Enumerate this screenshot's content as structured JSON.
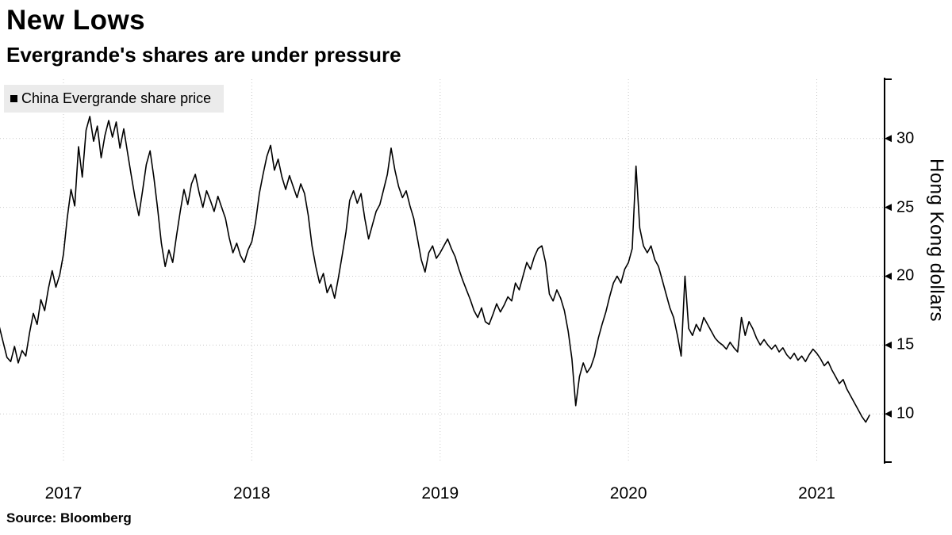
{
  "header": {
    "title": "New Lows",
    "subtitle": "Evergrande's shares are under pressure"
  },
  "legend": {
    "label": "China Evergrande share price"
  },
  "footer": {
    "source": "Source: Bloomberg"
  },
  "chart_data": {
    "type": "line",
    "title": "New Lows",
    "subtitle": "Evergrande's shares are under pressure",
    "ylabel": "Hong Kong dollars",
    "legend": [
      "China Evergrande share price"
    ],
    "legend_position": "top-left",
    "grid": "dotted",
    "line_color": "#000000",
    "grid_color": "#c9c9c9",
    "x_ticks": [
      2017,
      2018,
      2019,
      2020,
      2021
    ],
    "y_ticks": [
      10,
      15,
      20,
      25,
      30
    ],
    "xlim": [
      2016.663,
      2021.36
    ],
    "ylim": [
      6.5,
      34.3
    ],
    "series": [
      {
        "name": "China Evergrande share price",
        "points": [
          [
            2016.66,
            16.3
          ],
          [
            2016.68,
            15.2
          ],
          [
            2016.7,
            14.1
          ],
          [
            2016.72,
            13.8
          ],
          [
            2016.74,
            14.9
          ],
          [
            2016.76,
            13.7
          ],
          [
            2016.78,
            14.6
          ],
          [
            2016.8,
            14.2
          ],
          [
            2016.82,
            15.9
          ],
          [
            2016.84,
            17.3
          ],
          [
            2016.86,
            16.5
          ],
          [
            2016.88,
            18.3
          ],
          [
            2016.9,
            17.5
          ],
          [
            2016.92,
            19.1
          ],
          [
            2016.94,
            20.4
          ],
          [
            2016.96,
            19.2
          ],
          [
            2016.98,
            20.1
          ],
          [
            2017.0,
            21.6
          ],
          [
            2017.02,
            24.2
          ],
          [
            2017.04,
            26.3
          ],
          [
            2017.06,
            25.1
          ],
          [
            2017.08,
            29.4
          ],
          [
            2017.1,
            27.2
          ],
          [
            2017.12,
            30.6
          ],
          [
            2017.14,
            31.6
          ],
          [
            2017.16,
            29.8
          ],
          [
            2017.18,
            30.9
          ],
          [
            2017.2,
            28.6
          ],
          [
            2017.22,
            30.2
          ],
          [
            2017.24,
            31.3
          ],
          [
            2017.26,
            30.1
          ],
          [
            2017.28,
            31.2
          ],
          [
            2017.3,
            29.3
          ],
          [
            2017.32,
            30.7
          ],
          [
            2017.34,
            29.0
          ],
          [
            2017.36,
            27.3
          ],
          [
            2017.38,
            25.7
          ],
          [
            2017.4,
            24.4
          ],
          [
            2017.42,
            26.2
          ],
          [
            2017.44,
            28.1
          ],
          [
            2017.46,
            29.1
          ],
          [
            2017.48,
            27.2
          ],
          [
            2017.5,
            24.9
          ],
          [
            2017.52,
            22.4
          ],
          [
            2017.54,
            20.7
          ],
          [
            2017.56,
            21.9
          ],
          [
            2017.58,
            21.0
          ],
          [
            2017.6,
            22.9
          ],
          [
            2017.62,
            24.7
          ],
          [
            2017.64,
            26.3
          ],
          [
            2017.66,
            25.2
          ],
          [
            2017.68,
            26.7
          ],
          [
            2017.7,
            27.4
          ],
          [
            2017.72,
            26.1
          ],
          [
            2017.74,
            25.0
          ],
          [
            2017.76,
            26.2
          ],
          [
            2017.78,
            25.5
          ],
          [
            2017.8,
            24.7
          ],
          [
            2017.82,
            25.8
          ],
          [
            2017.84,
            25.0
          ],
          [
            2017.86,
            24.2
          ],
          [
            2017.88,
            22.8
          ],
          [
            2017.9,
            21.7
          ],
          [
            2017.92,
            22.4
          ],
          [
            2017.94,
            21.5
          ],
          [
            2017.96,
            21.0
          ],
          [
            2017.98,
            21.9
          ],
          [
            2018.0,
            22.5
          ],
          [
            2018.02,
            23.9
          ],
          [
            2018.04,
            26.0
          ],
          [
            2018.06,
            27.4
          ],
          [
            2018.08,
            28.7
          ],
          [
            2018.1,
            29.5
          ],
          [
            2018.12,
            27.7
          ],
          [
            2018.14,
            28.5
          ],
          [
            2018.16,
            27.2
          ],
          [
            2018.18,
            26.3
          ],
          [
            2018.2,
            27.3
          ],
          [
            2018.22,
            26.5
          ],
          [
            2018.24,
            25.7
          ],
          [
            2018.26,
            26.7
          ],
          [
            2018.28,
            26.0
          ],
          [
            2018.3,
            24.4
          ],
          [
            2018.32,
            22.2
          ],
          [
            2018.34,
            20.7
          ],
          [
            2018.36,
            19.5
          ],
          [
            2018.38,
            20.2
          ],
          [
            2018.4,
            18.8
          ],
          [
            2018.42,
            19.4
          ],
          [
            2018.44,
            18.4
          ],
          [
            2018.46,
            19.9
          ],
          [
            2018.48,
            21.5
          ],
          [
            2018.5,
            23.2
          ],
          [
            2018.52,
            25.5
          ],
          [
            2018.54,
            26.2
          ],
          [
            2018.56,
            25.3
          ],
          [
            2018.58,
            26.0
          ],
          [
            2018.6,
            24.2
          ],
          [
            2018.62,
            22.7
          ],
          [
            2018.64,
            23.7
          ],
          [
            2018.66,
            24.7
          ],
          [
            2018.68,
            25.2
          ],
          [
            2018.7,
            26.3
          ],
          [
            2018.72,
            27.4
          ],
          [
            2018.74,
            29.3
          ],
          [
            2018.76,
            27.7
          ],
          [
            2018.78,
            26.5
          ],
          [
            2018.8,
            25.7
          ],
          [
            2018.82,
            26.2
          ],
          [
            2018.84,
            25.1
          ],
          [
            2018.86,
            24.2
          ],
          [
            2018.88,
            22.7
          ],
          [
            2018.9,
            21.2
          ],
          [
            2018.92,
            20.3
          ],
          [
            2018.94,
            21.7
          ],
          [
            2018.96,
            22.2
          ],
          [
            2018.98,
            21.3
          ],
          [
            2019.0,
            21.7
          ],
          [
            2019.02,
            22.2
          ],
          [
            2019.04,
            22.7
          ],
          [
            2019.06,
            22.0
          ],
          [
            2019.08,
            21.4
          ],
          [
            2019.1,
            20.5
          ],
          [
            2019.12,
            19.7
          ],
          [
            2019.14,
            19.0
          ],
          [
            2019.16,
            18.3
          ],
          [
            2019.18,
            17.5
          ],
          [
            2019.2,
            17.0
          ],
          [
            2019.22,
            17.7
          ],
          [
            2019.24,
            16.7
          ],
          [
            2019.26,
            16.5
          ],
          [
            2019.28,
            17.2
          ],
          [
            2019.3,
            18.0
          ],
          [
            2019.32,
            17.4
          ],
          [
            2019.34,
            17.9
          ],
          [
            2019.36,
            18.5
          ],
          [
            2019.38,
            18.2
          ],
          [
            2019.4,
            19.5
          ],
          [
            2019.42,
            19.0
          ],
          [
            2019.44,
            20.0
          ],
          [
            2019.46,
            21.0
          ],
          [
            2019.48,
            20.5
          ],
          [
            2019.5,
            21.4
          ],
          [
            2019.52,
            22.0
          ],
          [
            2019.54,
            22.2
          ],
          [
            2019.56,
            21.0
          ],
          [
            2019.58,
            18.7
          ],
          [
            2019.6,
            18.2
          ],
          [
            2019.62,
            19.0
          ],
          [
            2019.64,
            18.4
          ],
          [
            2019.66,
            17.5
          ],
          [
            2019.68,
            16.0
          ],
          [
            2019.7,
            14.0
          ],
          [
            2019.72,
            10.6
          ],
          [
            2019.74,
            12.7
          ],
          [
            2019.76,
            13.7
          ],
          [
            2019.78,
            13.0
          ],
          [
            2019.8,
            13.4
          ],
          [
            2019.82,
            14.2
          ],
          [
            2019.84,
            15.5
          ],
          [
            2019.86,
            16.5
          ],
          [
            2019.88,
            17.4
          ],
          [
            2019.9,
            18.5
          ],
          [
            2019.92,
            19.5
          ],
          [
            2019.94,
            20.0
          ],
          [
            2019.96,
            19.5
          ],
          [
            2019.98,
            20.5
          ],
          [
            2020.0,
            21.0
          ],
          [
            2020.02,
            22.0
          ],
          [
            2020.04,
            28.0
          ],
          [
            2020.06,
            23.5
          ],
          [
            2020.08,
            22.2
          ],
          [
            2020.1,
            21.7
          ],
          [
            2020.12,
            22.2
          ],
          [
            2020.14,
            21.2
          ],
          [
            2020.16,
            20.7
          ],
          [
            2020.18,
            19.7
          ],
          [
            2020.2,
            18.7
          ],
          [
            2020.22,
            17.7
          ],
          [
            2020.24,
            17.0
          ],
          [
            2020.26,
            15.7
          ],
          [
            2020.28,
            14.2
          ],
          [
            2020.3,
            20.0
          ],
          [
            2020.32,
            16.2
          ],
          [
            2020.34,
            15.7
          ],
          [
            2020.36,
            16.5
          ],
          [
            2020.38,
            16.0
          ],
          [
            2020.4,
            17.0
          ],
          [
            2020.42,
            16.5
          ],
          [
            2020.44,
            16.0
          ],
          [
            2020.46,
            15.5
          ],
          [
            2020.48,
            15.2
          ],
          [
            2020.5,
            15.0
          ],
          [
            2020.52,
            14.7
          ],
          [
            2020.54,
            15.2
          ],
          [
            2020.56,
            14.8
          ],
          [
            2020.58,
            14.5
          ],
          [
            2020.6,
            17.0
          ],
          [
            2020.62,
            15.7
          ],
          [
            2020.64,
            16.7
          ],
          [
            2020.66,
            16.2
          ],
          [
            2020.68,
            15.5
          ],
          [
            2020.7,
            15.0
          ],
          [
            2020.72,
            15.4
          ],
          [
            2020.74,
            15.0
          ],
          [
            2020.76,
            14.7
          ],
          [
            2020.78,
            15.0
          ],
          [
            2020.8,
            14.5
          ],
          [
            2020.82,
            14.8
          ],
          [
            2020.84,
            14.3
          ],
          [
            2020.86,
            14.0
          ],
          [
            2020.88,
            14.4
          ],
          [
            2020.9,
            13.9
          ],
          [
            2020.92,
            14.2
          ],
          [
            2020.94,
            13.8
          ],
          [
            2020.96,
            14.3
          ],
          [
            2020.98,
            14.7
          ],
          [
            2021.0,
            14.4
          ],
          [
            2021.02,
            14.0
          ],
          [
            2021.04,
            13.5
          ],
          [
            2021.06,
            13.8
          ],
          [
            2021.08,
            13.2
          ],
          [
            2021.1,
            12.7
          ],
          [
            2021.12,
            12.2
          ],
          [
            2021.14,
            12.5
          ],
          [
            2021.16,
            11.8
          ],
          [
            2021.18,
            11.3
          ],
          [
            2021.2,
            10.8
          ],
          [
            2021.22,
            10.3
          ],
          [
            2021.24,
            9.8
          ],
          [
            2021.26,
            9.4
          ],
          [
            2021.28,
            9.9
          ]
        ]
      }
    ],
    "source": "Source: Bloomberg"
  }
}
